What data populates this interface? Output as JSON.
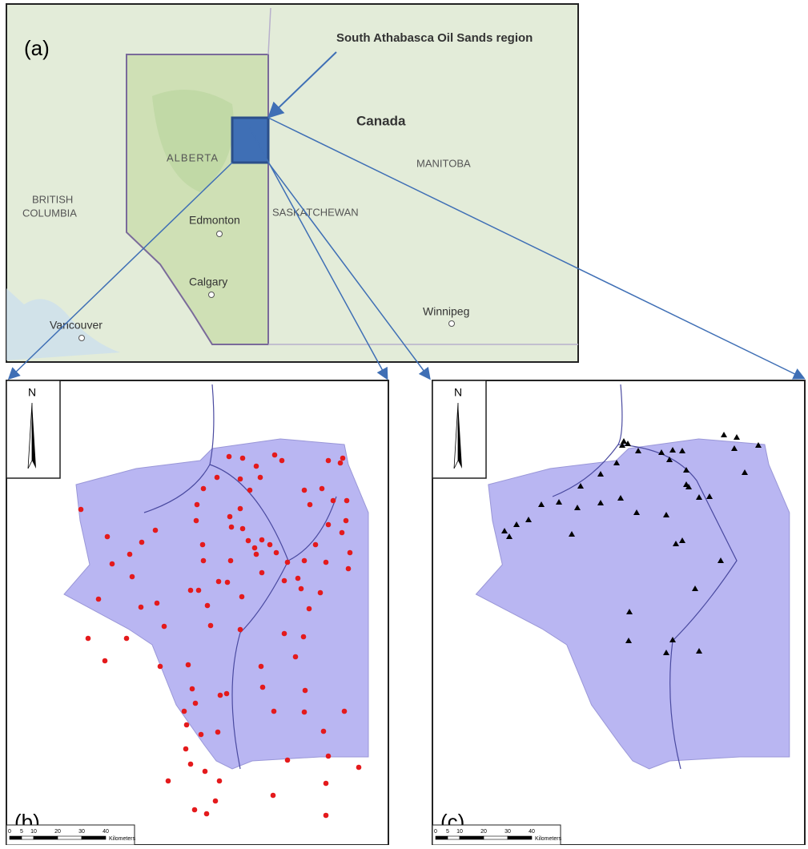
{
  "panels": {
    "a": {
      "label": "(a)",
      "callout": "South Athabasca Oil Sands region",
      "places": {
        "canada": "Canada",
        "alberta": "ALBERTA",
        "british_columbia_1": "BRITISH",
        "british_columbia_2": "COLUMBIA",
        "edmonton": "Edmonton",
        "saskatchewan": "SASKATCHEWAN",
        "manitoba": "MANITOBA",
        "calgary": "Calgary",
        "winnipeg": "Winnipeg",
        "vancouver": "Vancouver"
      }
    },
    "b": {
      "label": "(b)"
    },
    "c": {
      "label": "(c)"
    }
  },
  "north_arrow": "N",
  "scale_bar": {
    "labels": [
      0,
      5,
      10,
      20,
      30,
      40
    ],
    "unit": "Kilometers"
  }
}
